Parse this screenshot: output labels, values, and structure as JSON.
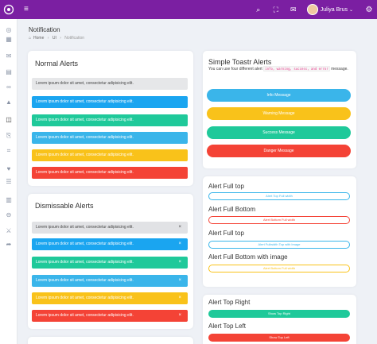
{
  "topbar": {
    "user_name": "Juliya Brus",
    "caret": "⌄",
    "menu_icon": "≡",
    "search_icon": "⌕",
    "fullscreen_icon": "⛶",
    "mail_icon": "✉",
    "settings_icon": "⚙"
  },
  "page": {
    "title": "Notification",
    "breadcrumb": {
      "home_icon": "⌂",
      "home": "Home",
      "sep1": "›",
      "ui": "UI",
      "sep2": "›",
      "current": "Notification"
    }
  },
  "sidebar_icons": [
    "◎",
    "▦",
    "✉",
    "▤",
    "∞",
    "▲",
    "◫",
    "⎘",
    "⌗",
    "♥",
    "☰",
    "▥",
    "⊖",
    "⚔",
    "➦"
  ],
  "normal_alerts": {
    "title": "Normal Alerts",
    "items": [
      {
        "text": "Lorem ipsum dolor sit amet, consectetur adipisicing elit."
      },
      {
        "text": "Lorem ipsum dolor sit amet, consectetur adipisicing elit."
      },
      {
        "text": "Lorem ipsum dolor sit amet, consectetur adipisicing elit."
      },
      {
        "text": "Lorem ipsum dolor sit amet, consectetur adipisicing elit."
      },
      {
        "text": "Lorem ipsum dolor sit amet, consectetur adipisicing elit."
      },
      {
        "text": "Lorem ipsum dolor sit amet, consectetur adipisicing elit."
      }
    ]
  },
  "dismissable_alerts": {
    "title": "Dismissable Alerts",
    "close": "×",
    "items": [
      {
        "text": "Lorem ipsum dolor sit amet, consectetur adipisicing elit."
      },
      {
        "text": "Lorem ipsum dolor sit amet, consectetur adipisicing elit."
      },
      {
        "text": "Lorem ipsum dolor sit amet, consectetur adipisicing elit."
      },
      {
        "text": "Lorem ipsum dolor sit amet, consectetur adipisicing elit."
      },
      {
        "text": "Lorem ipsum dolor sit amet, consectetur adipisicing elit."
      },
      {
        "text": "Lorem ipsum dolor sit amet, consectetur adipisicing elit."
      }
    ]
  },
  "toastr": {
    "title": "Simple Toastr Alerts",
    "desc_before": "You can use four different alert",
    "code": "info, warning, success, and error",
    "desc_after": "message.",
    "buttons": [
      "Info Message",
      "Warning Message",
      "Success Message",
      "Danger Message"
    ]
  },
  "full_alerts": {
    "sections": [
      {
        "title": "Alert Full top",
        "button": "Alert Top Full width"
      },
      {
        "title": "Alert Full Bottom",
        "button": "Alert Bottom Full width"
      },
      {
        "title": "Alert Full top",
        "button": "Alert Fullwidth Top with Image"
      },
      {
        "title": "Alert Full Bottom with image",
        "button": "Alert Bottom Full width"
      },
      {
        "title": "Alert Top Right",
        "button": "Show Top Right"
      },
      {
        "title": "Alert Top Left",
        "button": "Show Top Left"
      }
    ]
  },
  "colors": {
    "topbar": "#7b1fa2",
    "info": "#1aa5f0",
    "success": "#1fc99a",
    "light_blue": "#3ab5ea",
    "warning": "#f9c21a",
    "danger": "#f44336"
  }
}
